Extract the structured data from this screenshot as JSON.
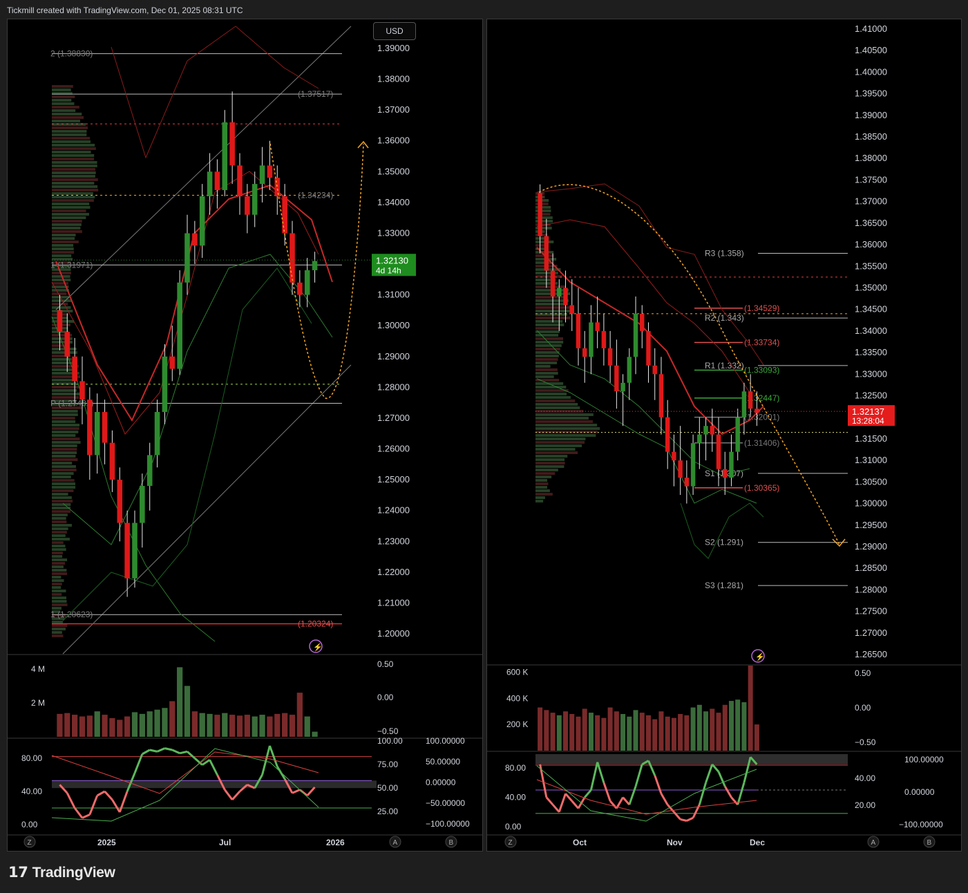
{
  "header": {
    "text": "Tickmill created with TradingView.com, Dec 01, 2025 08:31 UTC"
  },
  "footer": {
    "brand": "TradingView",
    "brand_icon": "tradingview-logo-icon"
  },
  "colors": {
    "bull": "#2e8b2e",
    "bear": "#e01818",
    "accent_orange": "#f5a623",
    "price_label_green": "#1e8c1e",
    "price_label_red": "#e51c1c"
  },
  "left_chart": {
    "currency_button": "USD",
    "price_axis_labels": [
      "1.39000",
      "1.38000",
      "1.37000",
      "1.36000",
      "1.35000",
      "1.34000",
      "1.33000",
      "1.31000",
      "1.30000",
      "1.29000",
      "1.28000",
      "1.27000",
      "1.26000",
      "1.25000",
      "1.24000",
      "1.23000",
      "1.22000",
      "1.21000",
      "1.20000"
    ],
    "current_price": "1.32130",
    "countdown": "4d 14h",
    "fib_labels": [
      {
        "text": "2 (1.38830)",
        "value": 1.3883
      },
      {
        "text": "(1.37517)",
        "value": 1.37517
      },
      {
        "text": "(1.34234)",
        "value": 1.34234
      },
      {
        "text": "1 (1.31971)",
        "value": 1.31971
      },
      {
        "text": "P (1.27482)",
        "value": 1.27482
      },
      {
        "text": "1 (1.20623)",
        "value": 1.20623
      },
      {
        "text": "(1.20324)",
        "value": 1.20324
      }
    ],
    "volume_axis_labels": [
      "4 M",
      "2 M"
    ],
    "oscillator_axis_labels": [
      "0.50",
      "0.00",
      "−0.50"
    ],
    "rsi_axis_labels": [
      "80.00",
      "40.00",
      "0.00"
    ],
    "rsi_right_labels_a": [
      "100.00",
      "75.00",
      "50.00",
      "25.00"
    ],
    "rsi_right_labels_b": [
      "100.00000",
      "50.00000",
      "0.00000",
      "−50.00000",
      "−100.00000"
    ],
    "time_labels": [
      "2025",
      "Jul",
      "2026"
    ],
    "bottom_buttons": [
      "Z",
      "A",
      "B"
    ],
    "ohlc_candles": [
      [
        1.305,
        1.31,
        1.292,
        1.298
      ],
      [
        1.298,
        1.304,
        1.285,
        1.29
      ],
      [
        1.29,
        1.296,
        1.275,
        1.282
      ],
      [
        1.282,
        1.29,
        1.268,
        1.276
      ],
      [
        1.276,
        1.28,
        1.25,
        1.258
      ],
      [
        1.258,
        1.278,
        1.252,
        1.272
      ],
      [
        1.272,
        1.276,
        1.255,
        1.262
      ],
      [
        1.262,
        1.266,
        1.246,
        1.25
      ],
      [
        1.25,
        1.254,
        1.23,
        1.236
      ],
      [
        1.236,
        1.24,
        1.212,
        1.218
      ],
      [
        1.218,
        1.24,
        1.215,
        1.236
      ],
      [
        1.236,
        1.252,
        1.228,
        1.248
      ],
      [
        1.248,
        1.262,
        1.24,
        1.258
      ],
      [
        1.258,
        1.276,
        1.254,
        1.272
      ],
      [
        1.272,
        1.294,
        1.268,
        1.29
      ],
      [
        1.29,
        1.3,
        1.282,
        1.286
      ],
      [
        1.286,
        1.318,
        1.284,
        1.314
      ],
      [
        1.314,
        1.336,
        1.31,
        1.33
      ],
      [
        1.33,
        1.334,
        1.32,
        1.326
      ],
      [
        1.326,
        1.346,
        1.322,
        1.342
      ],
      [
        1.342,
        1.356,
        1.336,
        1.35
      ],
      [
        1.35,
        1.354,
        1.338,
        1.344
      ],
      [
        1.344,
        1.37,
        1.342,
        1.366
      ],
      [
        1.366,
        1.376,
        1.346,
        1.352
      ],
      [
        1.352,
        1.356,
        1.336,
        1.342
      ],
      [
        1.342,
        1.346,
        1.33,
        1.336
      ],
      [
        1.336,
        1.35,
        1.332,
        1.346
      ],
      [
        1.346,
        1.358,
        1.34,
        1.352
      ],
      [
        1.352,
        1.36,
        1.344,
        1.348
      ],
      [
        1.348,
        1.352,
        1.336,
        1.342
      ],
      [
        1.342,
        1.346,
        1.326,
        1.33
      ],
      [
        1.33,
        1.334,
        1.31,
        1.314
      ],
      [
        1.314,
        1.318,
        1.306,
        1.31
      ],
      [
        1.31,
        1.322,
        1.306,
        1.318
      ],
      [
        1.318,
        1.324,
        1.314,
        1.321
      ]
    ],
    "volume_bars": [
      1.35,
      1.4,
      1.3,
      1.2,
      1.25,
      1.5,
      1.3,
      1.1,
      1.0,
      1.2,
      1.45,
      1.35,
      1.5,
      1.6,
      1.7,
      2.1,
      4.1,
      3.0,
      1.5,
      1.4,
      1.35,
      1.3,
      1.4,
      1.3,
      1.25,
      1.3,
      1.2,
      1.3,
      1.2,
      1.35,
      1.4,
      1.3,
      2.6,
      1.2,
      0.3
    ]
  },
  "right_chart": {
    "price_axis_labels": [
      "1.41000",
      "1.40500",
      "1.40000",
      "1.39500",
      "1.39000",
      "1.38500",
      "1.38000",
      "1.37500",
      "1.37000",
      "1.36500",
      "1.36000",
      "1.35500",
      "1.35000",
      "1.34500",
      "1.34000",
      "1.33500",
      "1.33000",
      "1.32500",
      "1.31500",
      "1.31000",
      "1.30500",
      "1.30000",
      "1.29500",
      "1.29000",
      "1.28500",
      "1.28000",
      "1.27500",
      "1.27000",
      "1.26500"
    ],
    "current_price": "1.32137",
    "countdown": "13:28:04",
    "pivot_labels": [
      {
        "text": "R3 (1.358)",
        "value": 1.358
      },
      {
        "text": "R2 (1.343)",
        "value": 1.343
      },
      {
        "text": "R1 (1.332)",
        "value": 1.332
      },
      {
        "text": "S1 (1.307)",
        "value": 1.307
      },
      {
        "text": "S2 (1.291)",
        "value": 1.291
      },
      {
        "text": "S3 (1.281)",
        "value": 1.281
      }
    ],
    "fib_labels": [
      {
        "text": "(1.34529)",
        "value": 1.34529,
        "color": "#e05050"
      },
      {
        "text": "(1.33734)",
        "value": 1.33734,
        "color": "#e05050"
      },
      {
        "text": "(1.33093)",
        "value": 1.33093,
        "color": "#3aa83a"
      },
      {
        "text": "(1.32447)",
        "value": 1.32447,
        "color": "#3aa83a"
      },
      {
        "text": "(1.32001)",
        "value": 1.32001,
        "color": "#777777"
      },
      {
        "text": "(1.31406)",
        "value": 1.31406,
        "color": "#777777"
      },
      {
        "text": "(1.30365)",
        "value": 1.30365,
        "color": "#e05050"
      }
    ],
    "volume_axis_labels": [
      "600 K",
      "400 K",
      "200 K"
    ],
    "oscillator_axis_labels": [
      "0.50",
      "0.00",
      "−0.50"
    ],
    "rsi_axis_labels": [
      "80.00",
      "40.00",
      "0.00"
    ],
    "rsi_right_labels_a": [
      "40.00",
      "20.00"
    ],
    "rsi_right_labels_b": [
      "100.00000",
      "0.00000",
      "−100.00000"
    ],
    "time_labels": [
      "Oct",
      "Nov",
      "Dec"
    ],
    "bottom_buttons": [
      "Z",
      "A",
      "B"
    ],
    "ohlc_candles": [
      [
        1.372,
        1.374,
        1.358,
        1.362
      ],
      [
        1.362,
        1.366,
        1.35,
        1.354
      ],
      [
        1.354,
        1.358,
        1.342,
        1.348
      ],
      [
        1.348,
        1.352,
        1.34,
        1.35
      ],
      [
        1.35,
        1.354,
        1.342,
        1.346
      ],
      [
        1.346,
        1.352,
        1.34,
        1.344
      ],
      [
        1.344,
        1.35,
        1.332,
        1.336
      ],
      [
        1.336,
        1.34,
        1.328,
        1.334
      ],
      [
        1.334,
        1.346,
        1.33,
        1.342
      ],
      [
        1.342,
        1.348,
        1.336,
        1.34
      ],
      [
        1.34,
        1.344,
        1.332,
        1.336
      ],
      [
        1.336,
        1.34,
        1.328,
        1.332
      ],
      [
        1.332,
        1.338,
        1.322,
        1.326
      ],
      [
        1.326,
        1.33,
        1.318,
        1.328
      ],
      [
        1.328,
        1.336,
        1.324,
        1.334
      ],
      [
        1.334,
        1.348,
        1.33,
        1.344
      ],
      [
        1.344,
        1.346,
        1.336,
        1.34
      ],
      [
        1.34,
        1.342,
        1.328,
        1.332
      ],
      [
        1.332,
        1.336,
        1.324,
        1.33
      ],
      [
        1.33,
        1.334,
        1.316,
        1.32
      ],
      [
        1.32,
        1.324,
        1.308,
        1.312
      ],
      [
        1.312,
        1.316,
        1.304,
        1.31
      ],
      [
        1.31,
        1.318,
        1.302,
        1.306
      ],
      [
        1.306,
        1.31,
        1.3,
        1.304
      ],
      [
        1.304,
        1.316,
        1.302,
        1.314
      ],
      [
        1.314,
        1.32,
        1.308,
        1.316
      ],
      [
        1.316,
        1.32,
        1.31,
        1.318
      ],
      [
        1.318,
        1.322,
        1.312,
        1.316
      ],
      [
        1.316,
        1.32,
        1.304,
        1.308
      ],
      [
        1.308,
        1.312,
        1.302,
        1.306
      ],
      [
        1.306,
        1.316,
        1.304,
        1.312
      ],
      [
        1.312,
        1.322,
        1.31,
        1.32
      ],
      [
        1.32,
        1.328,
        1.316,
        1.326
      ],
      [
        1.326,
        1.33,
        1.32,
        1.322
      ],
      [
        1.322,
        1.326,
        1.318,
        1.321
      ]
    ],
    "volume_bars": [
      330,
      310,
      290,
      270,
      300,
      280,
      260,
      320,
      290,
      270,
      250,
      330,
      300,
      280,
      260,
      310,
      290,
      270,
      240,
      300,
      260,
      250,
      280,
      270,
      330,
      350,
      300,
      320,
      290,
      350,
      380,
      390,
      370,
      720,
      200
    ]
  }
}
